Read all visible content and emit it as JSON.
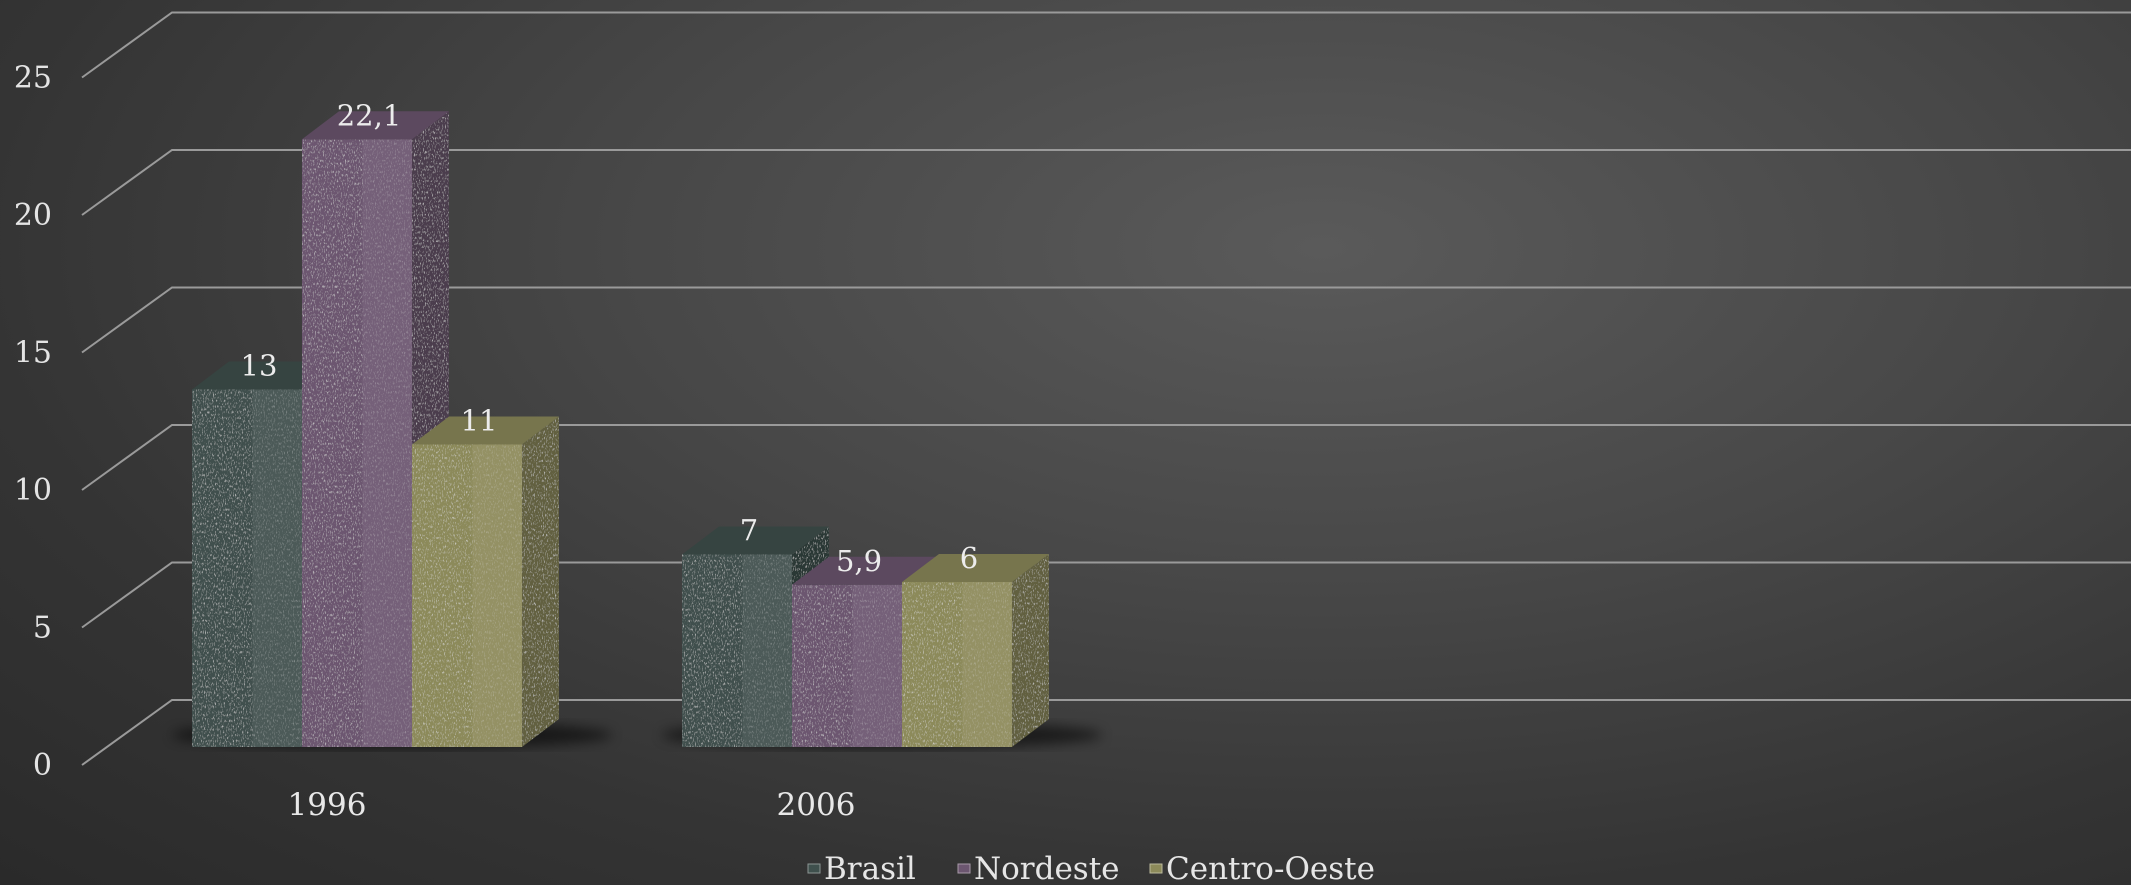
{
  "chart_data": {
    "type": "bar",
    "title": "",
    "xlabel": "",
    "ylabel": "",
    "categories": [
      "1996",
      "2006"
    ],
    "y_ticks": [
      "0",
      "5",
      "10",
      "15",
      "20",
      "25"
    ],
    "ylim": [
      0,
      25
    ],
    "grid": true,
    "legend_position": "bottom",
    "series": [
      {
        "name": "Brasil",
        "values": [
          13,
          7
        ],
        "value_labels": [
          "13",
          "7"
        ],
        "color": "#3f504d"
      },
      {
        "name": "Nordeste",
        "values": [
          22.1,
          5.9
        ],
        "value_labels": [
          "22,1",
          "5,9"
        ],
        "color": "#6c5670"
      },
      {
        "name": "Centro-Oeste",
        "values": [
          11,
          6
        ],
        "value_labels": [
          "11",
          "6"
        ],
        "color": "#8c8a5a"
      }
    ]
  }
}
